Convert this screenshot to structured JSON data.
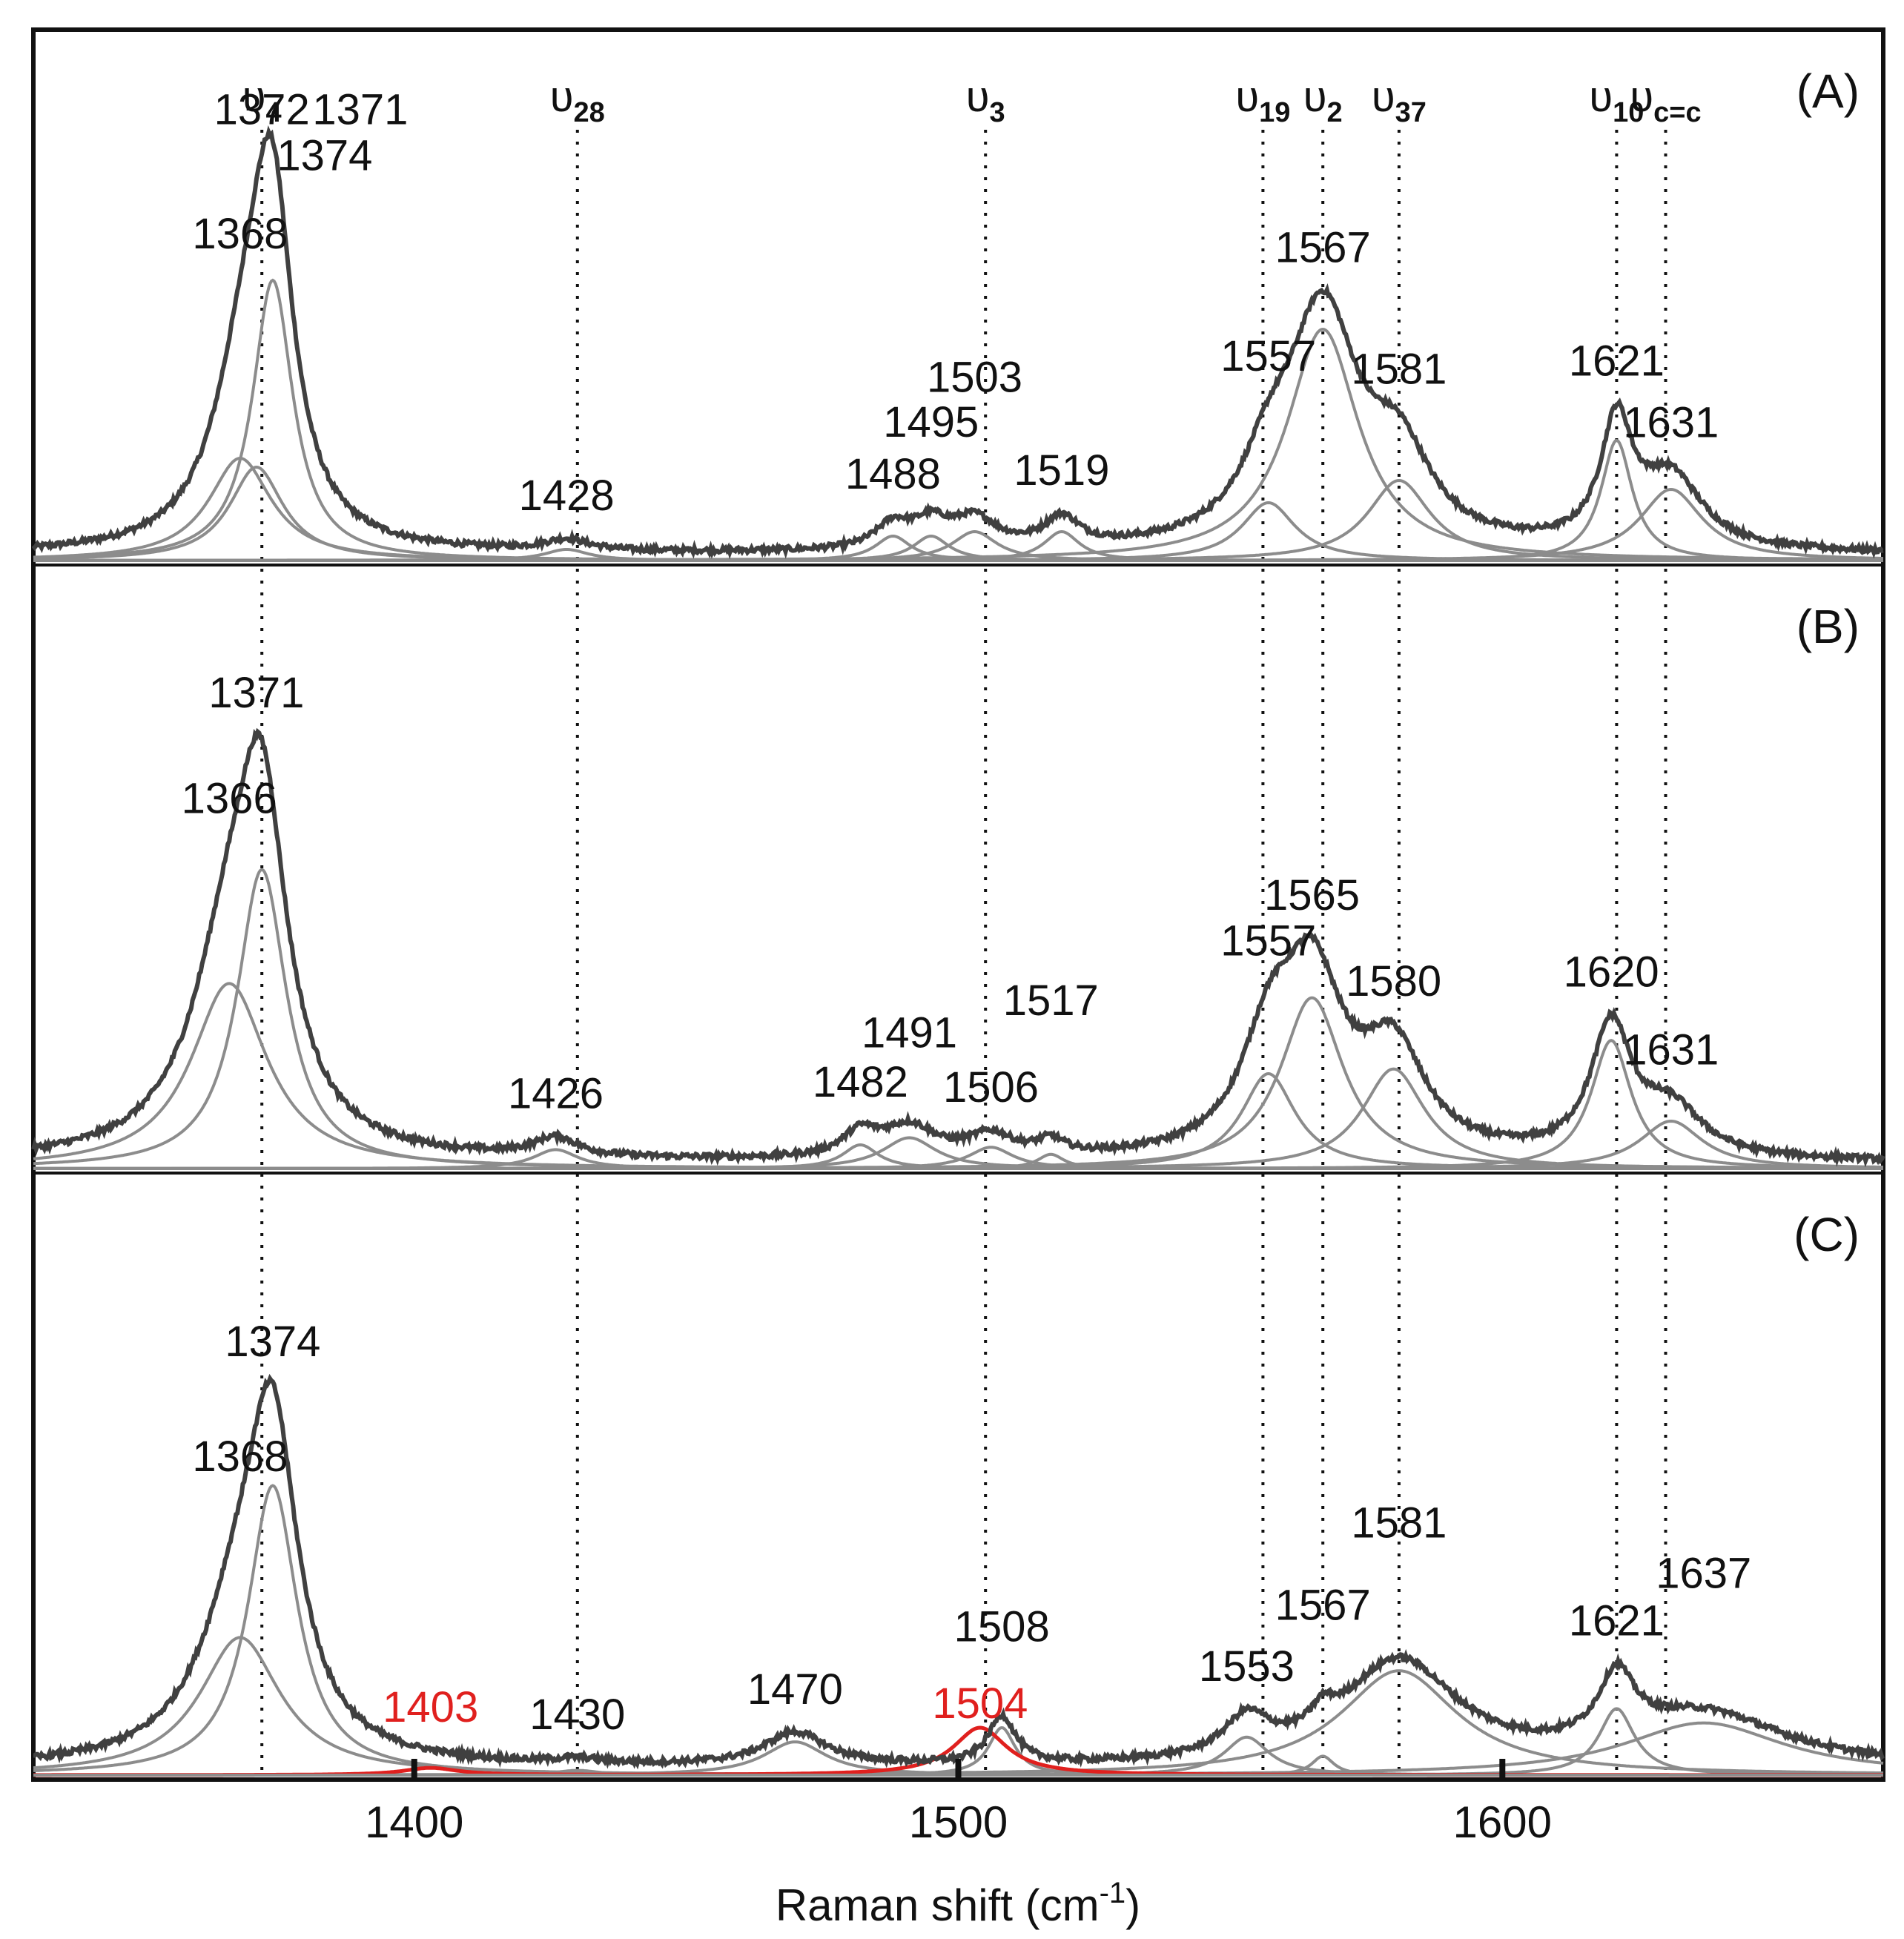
{
  "chart_data": {
    "type": "line",
    "title": "",
    "xlabel": "Raman shift (cm-1)",
    "xlabel_main": "Raman shift (cm",
    "xlabel_sup": "-1",
    "xlabel_close": ")",
    "ylabel": "",
    "xlim": [
      1330,
      1670
    ],
    "xticks": [
      1400,
      1500,
      1600
    ],
    "grid": false,
    "modes": [
      {
        "name": "υ4",
        "base": "υ",
        "sub": "4",
        "x": 1372
      },
      {
        "name": "υ28",
        "base": "υ",
        "sub": "28",
        "x": 1430
      },
      {
        "name": "υ3",
        "base": "υ",
        "sub": "3",
        "x": 1505
      },
      {
        "name": "υ19",
        "base": "υ",
        "sub": "19",
        "x": 1556
      },
      {
        "name": "υ2",
        "base": "υ",
        "sub": "2",
        "x": 1567
      },
      {
        "name": "υ37",
        "base": "υ",
        "sub": "37",
        "x": 1581
      },
      {
        "name": "υ10",
        "base": "υ",
        "sub": "10",
        "x": 1621
      },
      {
        "name": "υc=c",
        "base": "υ",
        "sub": "c=c",
        "x": 1630
      }
    ],
    "panels": [
      {
        "label": "(A)",
        "peaks": [
          {
            "pos": 1368,
            "amp": 0.23,
            "width": 7.0
          },
          {
            "pos": 1374,
            "amp": 0.63,
            "width": 4.5
          },
          {
            "pos": 1371,
            "amp": 0.21,
            "width": 6.0
          },
          {
            "pos": 1428,
            "amp": 0.025,
            "width": 5.0
          },
          {
            "pos": 1488,
            "amp": 0.055,
            "width": 4.0
          },
          {
            "pos": 1495,
            "amp": 0.055,
            "width": 4.0
          },
          {
            "pos": 1503,
            "amp": 0.065,
            "width": 5.0
          },
          {
            "pos": 1519,
            "amp": 0.065,
            "width": 4.0
          },
          {
            "pos": 1557,
            "amp": 0.13,
            "width": 6.0
          },
          {
            "pos": 1567,
            "amp": 0.52,
            "width": 8.0
          },
          {
            "pos": 1581,
            "amp": 0.18,
            "width": 7.0
          },
          {
            "pos": 1621,
            "amp": 0.27,
            "width": 3.5
          },
          {
            "pos": 1631,
            "amp": 0.16,
            "width": 7.0
          }
        ],
        "labels": [
          {
            "text": "1372",
            "x": 1372
          },
          {
            "text": "1374",
            "x": 1374
          },
          {
            "text": "1368",
            "x": 1368
          },
          {
            "text": "1371",
            "x": 1371
          },
          {
            "text": "1428",
            "x": 1428
          },
          {
            "text": "1488",
            "x": 1488
          },
          {
            "text": "1495",
            "x": 1495
          },
          {
            "text": "1503",
            "x": 1503
          },
          {
            "text": "1519",
            "x": 1519
          },
          {
            "text": "1557",
            "x": 1557
          },
          {
            "text": "1567",
            "x": 1567
          },
          {
            "text": "1581",
            "x": 1581
          },
          {
            "text": "1621",
            "x": 1621
          },
          {
            "text": "1631",
            "x": 1631
          }
        ]
      },
      {
        "label": "(B)",
        "peaks": [
          {
            "pos": 1366,
            "amp": 0.39,
            "width": 8.5
          },
          {
            "pos": 1372,
            "amp": 0.63,
            "width": 5.5
          },
          {
            "pos": 1426,
            "amp": 0.04,
            "width": 5.0
          },
          {
            "pos": 1482,
            "amp": 0.05,
            "width": 4.0
          },
          {
            "pos": 1491,
            "amp": 0.065,
            "width": 6.0
          },
          {
            "pos": 1506,
            "amp": 0.045,
            "width": 5.0
          },
          {
            "pos": 1517,
            "amp": 0.03,
            "width": 3.0
          },
          {
            "pos": 1557,
            "amp": 0.2,
            "width": 6.0
          },
          {
            "pos": 1565,
            "amp": 0.36,
            "width": 7.0
          },
          {
            "pos": 1580,
            "amp": 0.21,
            "width": 7.0
          },
          {
            "pos": 1620,
            "amp": 0.27,
            "width": 4.5
          },
          {
            "pos": 1631,
            "amp": 0.1,
            "width": 7.0
          }
        ],
        "labels": [
          {
            "text": "1371",
            "x": 1371
          },
          {
            "text": "1366",
            "x": 1366
          },
          {
            "text": "1426",
            "x": 1426
          },
          {
            "text": "1482",
            "x": 1482
          },
          {
            "text": "1491",
            "x": 1491
          },
          {
            "text": "1506",
            "x": 1506
          },
          {
            "text": "1517",
            "x": 1517
          },
          {
            "text": "1557",
            "x": 1557
          },
          {
            "text": "1565",
            "x": 1565
          },
          {
            "text": "1580",
            "x": 1580
          },
          {
            "text": "1620",
            "x": 1620
          },
          {
            "text": "1631",
            "x": 1631
          }
        ]
      },
      {
        "label": "(C)",
        "peaks": [
          {
            "pos": 1368,
            "amp": 0.29,
            "width": 9.0
          },
          {
            "pos": 1374,
            "amp": 0.61,
            "width": 5.5
          },
          {
            "pos": 1430,
            "amp": 0.01,
            "width": 5.0
          },
          {
            "pos": 1470,
            "amp": 0.07,
            "width": 7.0
          },
          {
            "pos": 1508,
            "amp": 0.1,
            "width": 3.0
          },
          {
            "pos": 1553,
            "amp": 0.08,
            "width": 5.0
          },
          {
            "pos": 1567,
            "amp": 0.04,
            "width": 2.5
          },
          {
            "pos": 1581,
            "amp": 0.22,
            "width": 13.0
          },
          {
            "pos": 1621,
            "amp": 0.14,
            "width": 4.0
          },
          {
            "pos": 1637,
            "amp": 0.11,
            "width": 18.0
          }
        ],
        "red_peaks": [
          {
            "pos": 1403,
            "amp": 0.015,
            "width": 6.0
          },
          {
            "pos": 1504,
            "amp": 0.1,
            "width": 6.0
          }
        ],
        "labels": [
          {
            "text": "1374",
            "x": 1374
          },
          {
            "text": "1368",
            "x": 1368
          },
          {
            "text": "1403",
            "x": 1403,
            "red": true
          },
          {
            "text": "1430",
            "x": 1430
          },
          {
            "text": "1470",
            "x": 1470
          },
          {
            "text": "1504",
            "x": 1504,
            "red": true
          },
          {
            "text": "1508",
            "x": 1508
          },
          {
            "text": "1553",
            "x": 1553
          },
          {
            "text": "1567",
            "x": 1567
          },
          {
            "text": "1581",
            "x": 1581
          },
          {
            "text": "1621",
            "x": 1621
          },
          {
            "text": "1637",
            "x": 1637
          }
        ]
      }
    ]
  }
}
